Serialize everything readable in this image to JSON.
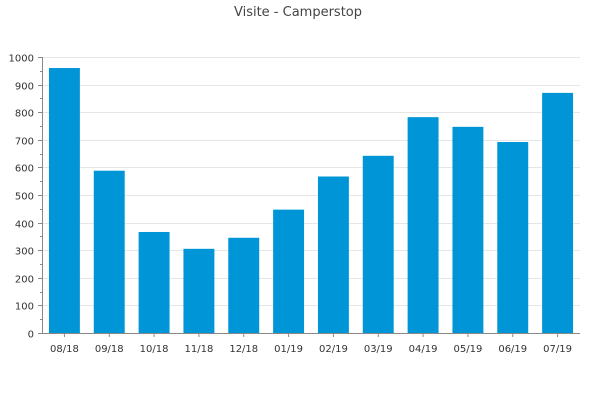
{
  "chart_data": {
    "type": "bar",
    "title": "Visite - Camperstop",
    "xlabel": "",
    "ylabel": "",
    "categories": [
      "08/18",
      "09/18",
      "10/18",
      "11/18",
      "12/18",
      "01/19",
      "02/19",
      "03/19",
      "04/19",
      "05/19",
      "06/19",
      "07/19"
    ],
    "values": [
      960,
      588,
      366,
      305,
      345,
      447,
      567,
      642,
      782,
      747,
      692,
      870
    ],
    "ylim": [
      0,
      1000
    ],
    "yticks": [
      "0",
      "100",
      "200",
      "300",
      "400",
      "500",
      "600",
      "700",
      "800",
      "900",
      "1000"
    ],
    "grid": true,
    "legend": "none",
    "colors": {
      "bar": "#0095d6",
      "grid": "#e6e6e6",
      "axis": "#888888",
      "text": "#333333",
      "title": "#444444"
    }
  }
}
